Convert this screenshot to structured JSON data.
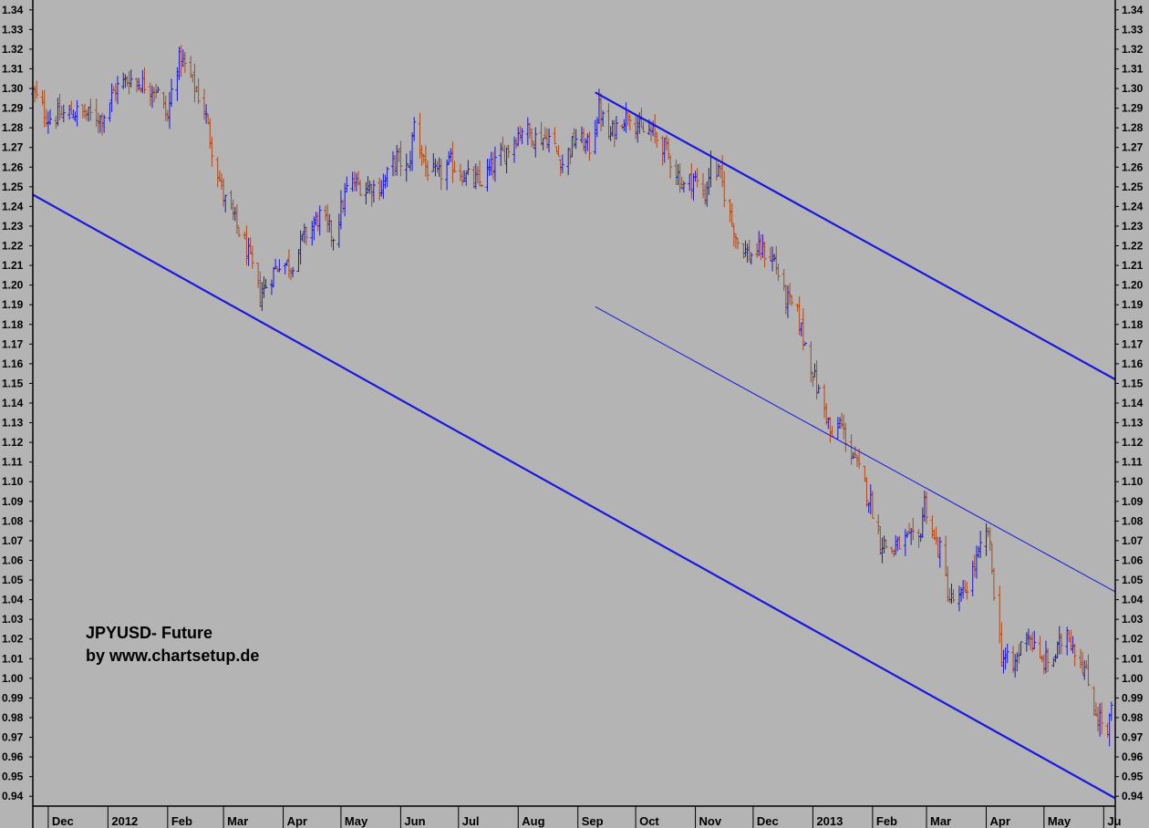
{
  "chart_data": {
    "type": "candlestick",
    "title": "",
    "xlabel": "",
    "ylabel": "",
    "ylim": [
      0.935,
      1.345
    ],
    "y_ticks": [
      0.94,
      0.95,
      0.96,
      0.97,
      0.98,
      0.99,
      1.0,
      1.01,
      1.02,
      1.03,
      1.04,
      1.05,
      1.06,
      1.07,
      1.08,
      1.09,
      1.1,
      1.11,
      1.12,
      1.13,
      1.14,
      1.15,
      1.16,
      1.17,
      1.18,
      1.19,
      1.2,
      1.21,
      1.22,
      1.23,
      1.24,
      1.25,
      1.26,
      1.27,
      1.28,
      1.29,
      1.3,
      1.31,
      1.32,
      1.33,
      1.34
    ],
    "y_tick_labels": [
      "0.94",
      "0.95",
      "0.96",
      "0.97",
      "0.98",
      "0.99",
      "1.00",
      "1.01",
      "1.02",
      "1.03",
      "1.04",
      "1.05",
      "1.06",
      "1.07",
      "1.08",
      "1.09",
      "1.10",
      "1.11",
      "1.12",
      "1.13",
      "1.14",
      "1.15",
      "1.16",
      "1.17",
      "1.18",
      "1.19",
      "1.20",
      "1.21",
      "1.22",
      "1.23",
      "1.24",
      "1.25",
      "1.26",
      "1.27",
      "1.28",
      "1.29",
      "1.30",
      "1.31",
      "1.32",
      "1.33",
      "1.34"
    ],
    "x_range": [
      "2011-11-23",
      "2013-06-07"
    ],
    "month_ticks": [
      {
        "date": "2011-12-01",
        "label": "Dec"
      },
      {
        "date": "2012-01-01",
        "label": "2012"
      },
      {
        "date": "2012-02-01",
        "label": "Feb"
      },
      {
        "date": "2012-03-01",
        "label": "Mar"
      },
      {
        "date": "2012-04-01",
        "label": "Apr"
      },
      {
        "date": "2012-05-01",
        "label": "May"
      },
      {
        "date": "2012-06-01",
        "label": "Jun"
      },
      {
        "date": "2012-07-01",
        "label": "Jul"
      },
      {
        "date": "2012-08-01",
        "label": "Aug"
      },
      {
        "date": "2012-09-01",
        "label": "Sep"
      },
      {
        "date": "2012-10-01",
        "label": "Oct"
      },
      {
        "date": "2012-11-01",
        "label": "Nov"
      },
      {
        "date": "2012-12-01",
        "label": "Dec"
      },
      {
        "date": "2013-01-01",
        "label": "2013"
      },
      {
        "date": "2013-02-01",
        "label": "Feb"
      },
      {
        "date": "2013-03-01",
        "label": "Mar"
      },
      {
        "date": "2013-04-01",
        "label": "Apr"
      },
      {
        "date": "2013-05-01",
        "label": "May"
      },
      {
        "date": "2013-06-01",
        "label": "Ju"
      }
    ],
    "price_path": [
      [
        "2011-11-23",
        1.298
      ],
      [
        "2011-12-01",
        1.285
      ],
      [
        "2011-12-15",
        1.288
      ],
      [
        "2011-12-29",
        1.285
      ],
      [
        "2012-01-05",
        1.3
      ],
      [
        "2012-01-12",
        1.305
      ],
      [
        "2012-01-26",
        1.3
      ],
      [
        "2012-02-01",
        1.285
      ],
      [
        "2012-02-05",
        1.312
      ],
      [
        "2012-02-08",
        1.315
      ],
      [
        "2012-02-13",
        1.305
      ],
      [
        "2012-02-20",
        1.29
      ],
      [
        "2012-02-24",
        1.27
      ],
      [
        "2012-03-01",
        1.245
      ],
      [
        "2012-03-08",
        1.23
      ],
      [
        "2012-03-14",
        1.215
      ],
      [
        "2012-03-20",
        1.195
      ],
      [
        "2012-03-26",
        1.205
      ],
      [
        "2012-03-30",
        1.212
      ],
      [
        "2012-04-05",
        1.21
      ],
      [
        "2012-04-12",
        1.225
      ],
      [
        "2012-04-20",
        1.235
      ],
      [
        "2012-04-27",
        1.225
      ],
      [
        "2012-05-05",
        1.252
      ],
      [
        "2012-05-15",
        1.25
      ],
      [
        "2012-05-22",
        1.25
      ],
      [
        "2012-05-30",
        1.265
      ],
      [
        "2012-06-05",
        1.258
      ],
      [
        "2012-06-08",
        1.282
      ],
      [
        "2012-06-14",
        1.26
      ],
      [
        "2012-06-20",
        1.255
      ],
      [
        "2012-06-27",
        1.262
      ],
      [
        "2012-07-05",
        1.255
      ],
      [
        "2012-07-12",
        1.252
      ],
      [
        "2012-07-20",
        1.262
      ],
      [
        "2012-07-27",
        1.27
      ],
      [
        "2012-08-03",
        1.28
      ],
      [
        "2012-08-10",
        1.275
      ],
      [
        "2012-08-17",
        1.275
      ],
      [
        "2012-08-24",
        1.262
      ],
      [
        "2012-08-31",
        1.275
      ],
      [
        "2012-09-07",
        1.27
      ],
      [
        "2012-09-12",
        1.29
      ],
      [
        "2012-09-17",
        1.275
      ],
      [
        "2012-09-24",
        1.285
      ],
      [
        "2012-09-28",
        1.288
      ],
      [
        "2012-10-04",
        1.278
      ],
      [
        "2012-10-09",
        1.278
      ],
      [
        "2012-10-16",
        1.27
      ],
      [
        "2012-10-22",
        1.258
      ],
      [
        "2012-10-26",
        1.25
      ],
      [
        "2012-10-31",
        1.255
      ],
      [
        "2012-11-06",
        1.245
      ],
      [
        "2012-11-09",
        1.262
      ],
      [
        "2012-11-14",
        1.255
      ],
      [
        "2012-11-19",
        1.235
      ],
      [
        "2012-11-23",
        1.222
      ],
      [
        "2012-11-29",
        1.215
      ],
      [
        "2012-12-05",
        1.218
      ],
      [
        "2012-12-12",
        1.213
      ],
      [
        "2012-12-17",
        1.195
      ],
      [
        "2012-12-24",
        1.185
      ],
      [
        "2012-12-28",
        1.17
      ],
      [
        "2013-01-04",
        1.145
      ],
      [
        "2013-01-08",
        1.135
      ],
      [
        "2013-01-11",
        1.12
      ],
      [
        "2013-01-15",
        1.13
      ],
      [
        "2013-01-21",
        1.115
      ],
      [
        "2013-01-25",
        1.105
      ],
      [
        "2013-01-31",
        1.09
      ],
      [
        "2013-02-05",
        1.07
      ],
      [
        "2013-02-11",
        1.065
      ],
      [
        "2013-02-18",
        1.07
      ],
      [
        "2013-02-25",
        1.07
      ],
      [
        "2013-02-28",
        1.09
      ],
      [
        "2013-03-05",
        1.07
      ],
      [
        "2013-03-08",
        1.065
      ],
      [
        "2013-03-13",
        1.04
      ],
      [
        "2013-03-19",
        1.04
      ],
      [
        "2013-03-25",
        1.055
      ],
      [
        "2013-03-29",
        1.065
      ],
      [
        "2013-04-02",
        1.075
      ],
      [
        "2013-04-05",
        1.045
      ],
      [
        "2013-04-09",
        1.012
      ],
      [
        "2013-04-15",
        1.005
      ],
      [
        "2013-04-22",
        1.025
      ],
      [
        "2013-04-29",
        1.008
      ],
      [
        "2013-05-06",
        1.01
      ],
      [
        "2013-05-13",
        1.025
      ],
      [
        "2013-05-17",
        1.015
      ],
      [
        "2013-05-22",
        1.005
      ],
      [
        "2013-05-27",
        0.985
      ],
      [
        "2013-05-31",
        0.978
      ],
      [
        "2013-06-03",
        0.97
      ],
      [
        "2013-06-05",
        0.985
      ]
    ],
    "trendlines": [
      {
        "from": [
          "2011-11-23",
          1.246
        ],
        "to": [
          "2013-06-07",
          0.939
        ],
        "weight": "thick"
      },
      {
        "from": [
          "2012-09-10",
          1.298
        ],
        "to": [
          "2013-06-07",
          1.152
        ],
        "weight": "thick"
      },
      {
        "from": [
          "2012-09-10",
          1.189
        ],
        "to": [
          "2013-06-07",
          1.044
        ],
        "weight": "thin"
      }
    ],
    "colors": {
      "background": "#b4b4b4",
      "up": "#1818d0",
      "down": "#b04818",
      "trendline": "#1818e0",
      "axis": "#000000"
    },
    "annotation": {
      "line1": "JPYUSD- Future",
      "line2": "by www.chartsetup.de"
    }
  }
}
